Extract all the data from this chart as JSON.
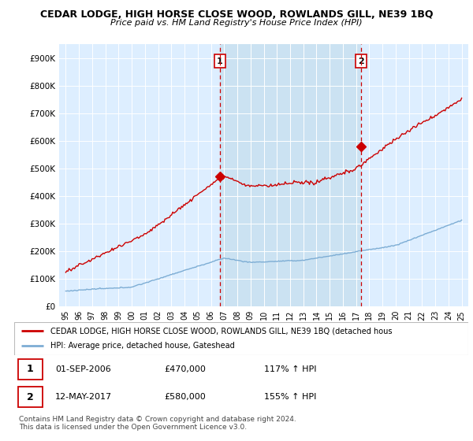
{
  "title": "CEDAR LODGE, HIGH HORSE CLOSE WOOD, ROWLANDS GILL, NE39 1BQ",
  "subtitle": "Price paid vs. HM Land Registry's House Price Index (HPI)",
  "ylabel_ticks": [
    "£0",
    "£100K",
    "£200K",
    "£300K",
    "£400K",
    "£500K",
    "£600K",
    "£700K",
    "£800K",
    "£900K"
  ],
  "ytick_values": [
    0,
    100000,
    200000,
    300000,
    400000,
    500000,
    600000,
    700000,
    800000,
    900000
  ],
  "ylim": [
    0,
    950000
  ],
  "xlim_start": 1994.5,
  "xlim_end": 2025.5,
  "sale1_x": 2006.67,
  "sale1_y": 470000,
  "sale2_x": 2017.36,
  "sale2_y": 580000,
  "hpi_color": "#7dadd4",
  "price_color": "#cc0000",
  "background_color": "#ddeeff",
  "shade_color": "#c8dcf0",
  "legend_label_price": "CEDAR LODGE, HIGH HORSE CLOSE WOOD, ROWLANDS GILL, NE39 1BQ (detached hous",
  "legend_label_hpi": "HPI: Average price, detached house, Gateshead",
  "table_rows": [
    {
      "num": "1",
      "date": "01-SEP-2006",
      "price": "£470,000",
      "hpi": "117% ↑ HPI"
    },
    {
      "num": "2",
      "date": "12-MAY-2017",
      "price": "£580,000",
      "hpi": "155% ↑ HPI"
    }
  ],
  "footnote": "Contains HM Land Registry data © Crown copyright and database right 2024.\nThis data is licensed under the Open Government Licence v3.0."
}
